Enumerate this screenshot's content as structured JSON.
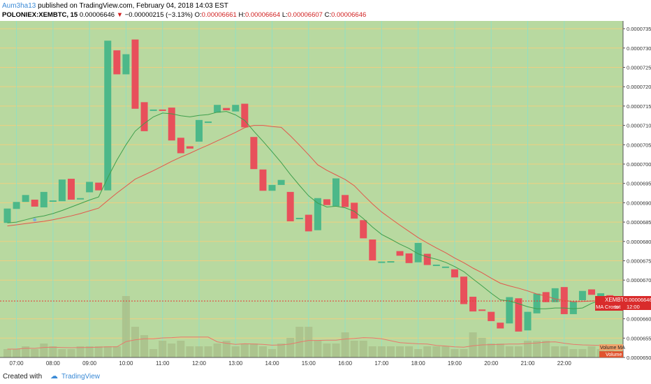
{
  "header": {
    "author": "Aum3ha13",
    "published_text": "published on TradingView.com, February 04, 2018 14:03 EST",
    "symbol": "POLONIEX:XEMBTC, 15",
    "last": "0.00006646",
    "change_arrow": "▼",
    "change": "−0.00000215 (−3.13%)",
    "open_label": "O:",
    "open": "0.00006661",
    "high_label": "H:",
    "high": "0.00006664",
    "low_label": "L:",
    "low": "0.00006607",
    "close_label": "C:",
    "close": "0.00006646"
  },
  "footer": {
    "created_with": "Created with",
    "brand": "TradingView",
    "logo_icon": "tradingview-logo-icon"
  },
  "colors": {
    "background": "#b8d9a0",
    "grid_vertical": "#8fe0c6",
    "grid_horizontal": "#f4cf7e",
    "up": "#4cb889",
    "down": "#e8505b",
    "ma_fast": "#3f9f4c",
    "ma_slow": "#e2574c",
    "price_line": "#e53935",
    "volume_bar": "#a9c08b",
    "volume_ma": "#e7796c"
  },
  "chart_data": {
    "type": "candlestick",
    "title": "POLONIEX:XEMBTC, 15",
    "ylim": [
      6.5e-05,
      7.37e-05
    ],
    "y_ticks": [
      "0.00007350",
      "0.00007300",
      "0.00007250",
      "0.00007200",
      "0.00007150",
      "0.00007100",
      "0.00007050",
      "0.00007000",
      "0.00006950",
      "0.00006900",
      "0.00006850",
      "0.00006800",
      "0.00006750",
      "0.00006700",
      "0.00006600",
      "0.00006550",
      "0.00006500"
    ],
    "x_ticks": [
      "07:00",
      "08:00",
      "09:00",
      "10:00",
      "11:00",
      "12:00",
      "13:00",
      "14:00",
      "15:00",
      "16:00",
      "17:00",
      "18:00",
      "19:00",
      "20:00",
      "21:00",
      "22:00"
    ],
    "x_start": "06:45",
    "interval_minutes": 15,
    "candles": [
      [
        6.848,
        6.885
      ],
      [
        6.884,
        6.902
      ],
      [
        6.902,
        6.92
      ],
      [
        6.908,
        6.89
      ],
      [
        6.888,
        6.928
      ],
      [
        6.906,
        6.906
      ],
      [
        6.904,
        6.96
      ],
      [
        6.962,
        6.908
      ],
      [
        6.912,
        6.912
      ],
      [
        6.927,
        6.954
      ],
      [
        6.952,
        6.932
      ],
      [
        6.932,
        7.319
      ],
      [
        7.294,
        7.232
      ],
      [
        7.232,
        7.284
      ],
      [
        7.322,
        7.143
      ],
      [
        7.16,
        7.085
      ],
      [
        7.141,
        7.141
      ],
      [
        7.141,
        7.14
      ],
      [
        7.146,
        7.061
      ],
      [
        7.068,
        7.028
      ],
      [
        7.046,
        7.04
      ],
      [
        7.058,
        7.114
      ],
      [
        7.11,
        7.11
      ],
      [
        7.133,
        7.153
      ],
      [
        7.145,
        7.139
      ],
      [
        7.136,
        7.153
      ],
      [
        7.156,
        7.095
      ],
      [
        7.07,
        6.987
      ],
      [
        6.986,
        6.931
      ],
      [
        6.931,
        6.946
      ],
      [
        6.946,
        6.959
      ],
      [
        6.928,
        6.852
      ],
      [
        6.861,
        6.861
      ],
      [
        6.869,
        6.826
      ],
      [
        6.829,
        6.912
      ],
      [
        6.909,
        6.894
      ],
      [
        6.891,
        6.963
      ],
      [
        6.92,
        6.889
      ],
      [
        6.9,
        6.859
      ],
      [
        6.855,
        6.808
      ],
      [
        6.805,
        6.751
      ],
      [
        6.748,
        6.748
      ],
      [
        6.749,
        6.749
      ],
      [
        6.775,
        6.763
      ],
      [
        6.769,
        6.744
      ],
      [
        6.746,
        6.796
      ],
      [
        6.768,
        6.739
      ],
      [
        6.74,
        6.74
      ],
      [
        6.733,
        6.735
      ],
      [
        6.728,
        6.707
      ],
      [
        6.709,
        6.638
      ],
      [
        6.657,
        6.619
      ],
      [
        6.624,
        6.622
      ],
      [
        6.618,
        6.594
      ],
      [
        6.59,
        6.575
      ],
      [
        6.588,
        6.656
      ],
      [
        6.653,
        6.567
      ],
      [
        6.57,
        6.618
      ],
      [
        6.614,
        6.665
      ],
      [
        6.669,
        6.643
      ],
      [
        6.643,
        6.679
      ],
      [
        6.682,
        6.612
      ],
      [
        6.612,
        6.645
      ],
      [
        6.648,
        6.672
      ],
      [
        6.676,
        6.662
      ],
      [
        6.658,
        6.666
      ],
      [
        6.661,
        6.646
      ]
    ],
    "scale_note": "prices in units of 1e-5 BTC",
    "volume_marks": [
      3,
      3,
      4,
      3,
      5,
      4,
      3,
      3,
      4,
      4,
      4,
      4,
      4,
      22,
      11,
      8,
      3,
      6,
      5,
      6,
      4,
      4,
      4,
      5,
      6,
      4,
      5,
      5,
      4,
      3,
      5,
      7,
      11,
      11,
      6,
      5,
      5,
      9,
      6,
      6,
      4,
      4,
      4,
      4,
      4,
      3,
      4,
      4,
      4,
      3,
      3,
      9,
      7,
      5,
      5,
      4,
      4,
      6,
      6,
      6,
      4,
      4,
      3,
      3,
      4,
      3,
      3
    ],
    "ma_fast": [
      6.848,
      6.85,
      6.856,
      6.862,
      6.866,
      6.872,
      6.88,
      6.889,
      6.898,
      6.907,
      6.915,
      6.965,
      7.01,
      7.05,
      7.085,
      7.105,
      7.122,
      7.132,
      7.13,
      7.125,
      7.122,
      7.126,
      7.128,
      7.134,
      7.136,
      7.127,
      7.113,
      7.085,
      7.059,
      7.032,
      7.004,
      6.973,
      6.945,
      6.918,
      6.899,
      6.889,
      6.891,
      6.887,
      6.878,
      6.859,
      6.837,
      6.818,
      6.806,
      6.793,
      6.782,
      6.768,
      6.76,
      6.754,
      6.746,
      6.735,
      6.722,
      6.703,
      6.685,
      6.666,
      6.649,
      6.646,
      6.639,
      6.631,
      6.626,
      6.626,
      6.628,
      6.628,
      6.626,
      6.628,
      6.64,
      6.648,
      6.653
    ],
    "ma_slow": [
      6.84,
      6.843,
      6.846,
      6.849,
      6.852,
      6.856,
      6.861,
      6.866,
      6.872,
      6.879,
      6.886,
      6.906,
      6.925,
      6.943,
      6.961,
      6.972,
      6.983,
      6.995,
      7.007,
      7.018,
      7.028,
      7.039,
      7.049,
      7.06,
      7.071,
      7.082,
      7.094,
      7.1,
      7.1,
      7.097,
      7.095,
      7.073,
      7.049,
      7.024,
      6.998,
      6.984,
      6.972,
      6.96,
      6.944,
      6.92,
      6.897,
      6.876,
      6.859,
      6.842,
      6.826,
      6.81,
      6.796,
      6.783,
      6.771,
      6.757,
      6.745,
      6.731,
      6.719,
      6.705,
      6.692,
      6.685,
      6.679,
      6.672,
      6.664,
      6.659,
      6.651,
      6.648,
      6.644,
      6.645,
      6.646,
      6.647,
      6.648
    ],
    "last_price": 6.646,
    "labels": {
      "ma_label": "MA",
      "symbol_badge": "XEMBTC",
      "ma_cross": "MA Cross",
      "ma_cross_suffix": "tot",
      "price_badge": "0.00006646",
      "time_badge": "12:00",
      "volume_ma_label": "Volume MA",
      "volume_label": "Volume"
    }
  }
}
